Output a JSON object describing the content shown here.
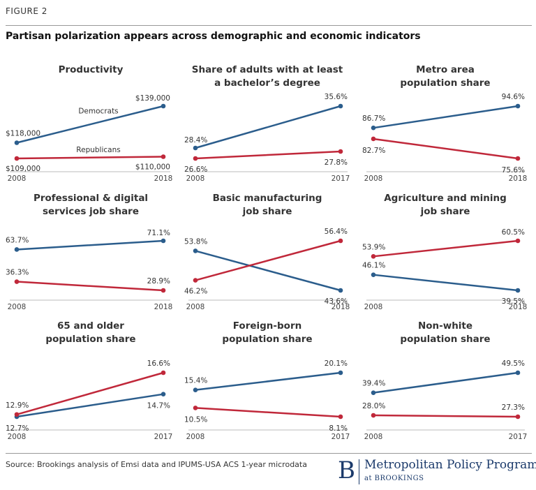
{
  "figure_label": "FIGURE 2",
  "title": "Partisan polarization appears across demographic and economic indicators",
  "source": "Source: Brookings analysis of Emsi data and IPUMS-USA ACS 1-year microdata",
  "logo": {
    "letter": "B",
    "name": "Metropolitan Policy Program",
    "sub": "at BROOKINGS"
  },
  "colors": {
    "democrats": "#2b5d8c",
    "republicans": "#c0283a"
  },
  "chart_data": [
    {
      "type": "line",
      "title": [
        "Productivity"
      ],
      "x": [
        "2008",
        "2018"
      ],
      "series": [
        {
          "name": "Democrats",
          "values": [
            118000,
            139000
          ],
          "labels": [
            "$118,000",
            "$139,000"
          ]
        },
        {
          "name": "Republicans",
          "values": [
            109000,
            110000
          ],
          "labels": [
            "$109,000",
            "$110,000"
          ]
        }
      ]
    },
    {
      "type": "line",
      "title": [
        "Share of adults with at least",
        "a bachelor’s degree"
      ],
      "x": [
        "2008",
        "2017"
      ],
      "series": [
        {
          "values": [
            28.4,
            35.6
          ],
          "labels": [
            "28.4%",
            "35.6%"
          ]
        },
        {
          "values": [
            26.6,
            27.8
          ],
          "labels": [
            "26.6%",
            "27.8%"
          ]
        }
      ]
    },
    {
      "type": "line",
      "title": [
        "Metro area",
        "population share"
      ],
      "x": [
        "2008",
        "2018"
      ],
      "series": [
        {
          "values": [
            86.7,
            94.6
          ],
          "labels": [
            "86.7%",
            "94.6%"
          ]
        },
        {
          "values": [
            82.7,
            75.6
          ],
          "labels": [
            "82.7%",
            "75.6%"
          ]
        }
      ]
    },
    {
      "type": "line",
      "title": [
        "Professional & digital",
        "services job share"
      ],
      "x": [
        "2008",
        "2018"
      ],
      "series": [
        {
          "values": [
            63.7,
            71.1
          ],
          "labels": [
            "63.7%",
            "71.1%"
          ]
        },
        {
          "values": [
            36.3,
            28.9
          ],
          "labels": [
            "36.3%",
            "28.9%"
          ]
        }
      ]
    },
    {
      "type": "line",
      "title": [
        "Basic manufacturing",
        "job share"
      ],
      "x": [
        "2008",
        "2018"
      ],
      "series": [
        {
          "values": [
            53.8,
            43.6
          ],
          "labels": [
            "53.8%",
            "43.6%"
          ]
        },
        {
          "values": [
            46.2,
            56.4
          ],
          "labels": [
            "46.2%",
            "56.4%"
          ]
        }
      ]
    },
    {
      "type": "line",
      "title": [
        "Agriculture and mining",
        "job share"
      ],
      "x": [
        "2008",
        "2018"
      ],
      "series": [
        {
          "values": [
            46.1,
            39.5
          ],
          "labels": [
            "46.1%",
            "39.5%"
          ]
        },
        {
          "values": [
            53.9,
            60.5
          ],
          "labels": [
            "53.9%",
            "60.5%"
          ]
        }
      ]
    },
    {
      "type": "line",
      "title": [
        "65 and older",
        "population share"
      ],
      "x": [
        "2008",
        "2017"
      ],
      "series": [
        {
          "values": [
            12.7,
            14.7
          ],
          "labels": [
            "12.7%",
            "14.7%"
          ]
        },
        {
          "values": [
            12.9,
            16.6
          ],
          "labels": [
            "12.9%",
            "16.6%"
          ]
        }
      ]
    },
    {
      "type": "line",
      "title": [
        "Foreign-born",
        "population share"
      ],
      "x": [
        "2008",
        "2017"
      ],
      "series": [
        {
          "values": [
            15.4,
            20.1
          ],
          "labels": [
            "15.4%",
            "20.1%"
          ]
        },
        {
          "values": [
            10.5,
            8.1
          ],
          "labels": [
            "10.5%",
            "8.1%"
          ]
        }
      ]
    },
    {
      "type": "line",
      "title": [
        "Non-white",
        "population share"
      ],
      "x": [
        "2008",
        "2017"
      ],
      "series": [
        {
          "values": [
            39.4,
            49.5
          ],
          "labels": [
            "39.4%",
            "49.5%"
          ]
        },
        {
          "values": [
            28.0,
            27.3
          ],
          "labels": [
            "28.0%",
            "27.3%"
          ]
        }
      ]
    }
  ]
}
